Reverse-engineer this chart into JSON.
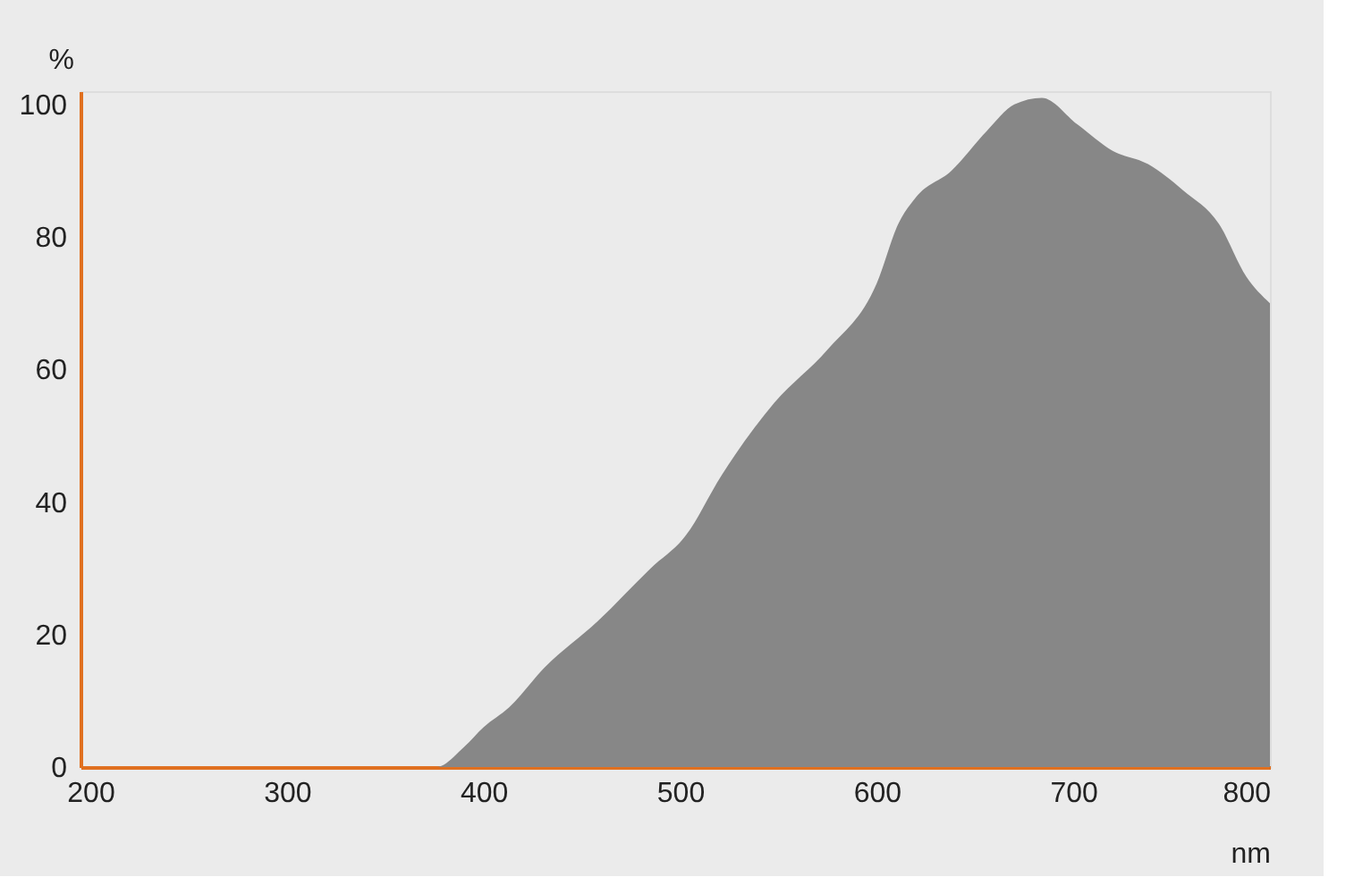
{
  "chart_data": {
    "type": "area",
    "xlabel": "nm",
    "ylabel": "%",
    "x": [
      195,
      300,
      376,
      390,
      400,
      413,
      431,
      458,
      485,
      503,
      521,
      548,
      575,
      600,
      611,
      620,
      638,
      656,
      670,
      684,
      702,
      720,
      738,
      756,
      774,
      788,
      800
    ],
    "series": [
      {
        "color": "#878787",
        "values": [
          0,
          0,
          0,
          3,
          6,
          9,
          15,
          22,
          30,
          35,
          44,
          55,
          63,
          73,
          82,
          86,
          90,
          96,
          100,
          101,
          97,
          93,
          91,
          87,
          82,
          74,
          70
        ]
      }
    ],
    "xlim": [
      195,
      800
    ],
    "xticks": [
      200,
      300,
      400,
      500,
      600,
      700,
      800
    ],
    "ylim": [
      0,
      102
    ],
    "yticks": [
      0,
      20,
      40,
      60,
      80,
      100
    ],
    "grid": false,
    "legend": false
  }
}
